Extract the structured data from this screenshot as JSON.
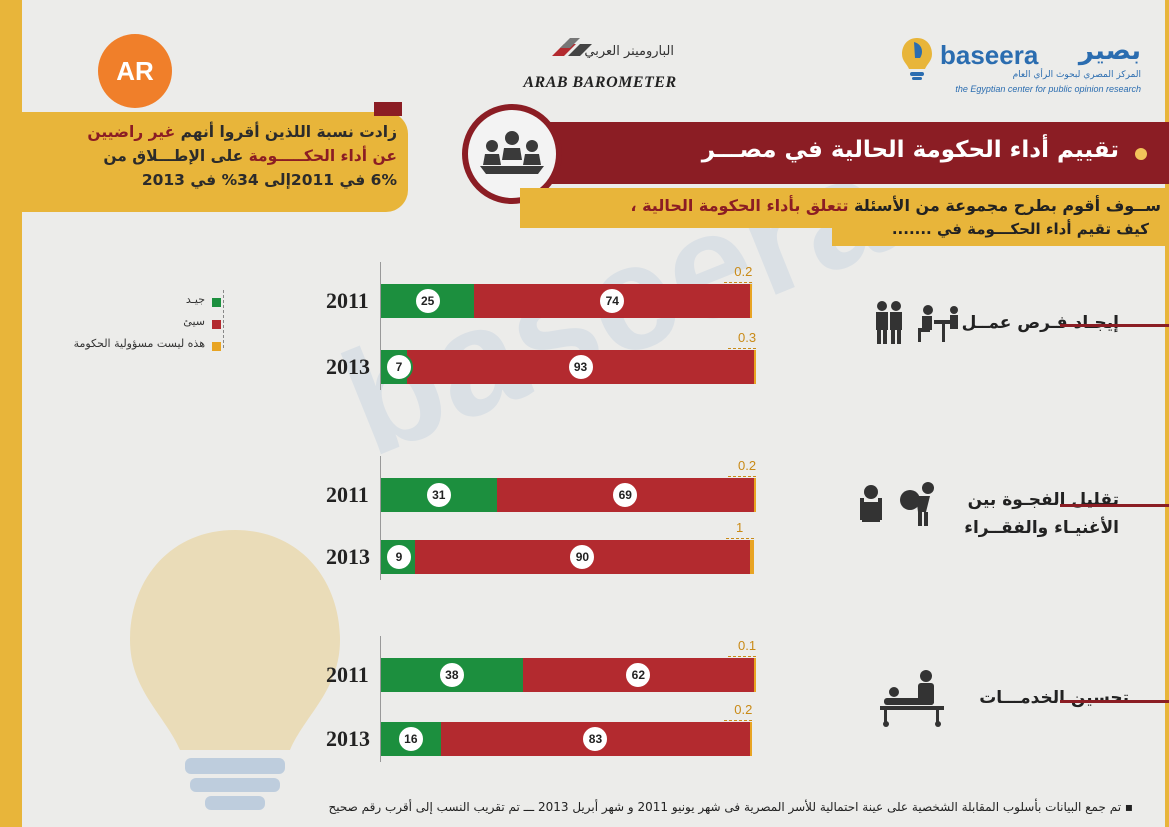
{
  "header": {
    "ar_logo_text": "AR",
    "arab_barometer_ar": "البارومينر العربي",
    "arab_barometer_en": "ARAB BAROMETER",
    "baseera_en": "baseera",
    "baseera_ar": "بصير",
    "baseera_sub_ar": "المركز المصري لبحوث الرأي العام",
    "baseera_sub_en": "the Egyptian center for public opinion research"
  },
  "title": "تقييم أداء الحكومة الحالية في مصـــر",
  "question": {
    "line1_a": "ســوف أقوم بطرح مجموعة من الأسئلة ",
    "line1_hl": "تتعلق بأداء الحكومة الحالية ،",
    "line2": "كيف تقيم أداء الحكـــومة في ......."
  },
  "callout": {
    "p1": "زادت نسبة اللذين أقروا أنهم ",
    "p1_red": "غير راضيين",
    "p2": " عن أداء الحكـــــومة",
    "p3": " على الإطـــلاق من",
    "p4": "6% في 2011إلى 34% في 2013"
  },
  "legend": [
    {
      "label": "جيـد",
      "color": "#1c8f3e"
    },
    {
      "label": "سيئ",
      "color": "#b32a2f"
    },
    {
      "label": "هذه ليست مسؤولية الحكومة",
      "color": "#e8a423"
    }
  ],
  "categories": [
    {
      "label1": "إيجـاد فـرص عمــل",
      "label2": "",
      "icon": "job-interview-icon"
    },
    {
      "label1": "تقليل الفجـوة بين",
      "label2": "الأغنيـاء والفقــراء",
      "icon": "rich-poor-gap-icon"
    },
    {
      "label1": "تحسين الخدمـــات",
      "label2": "",
      "icon": "medical-services-icon"
    }
  ],
  "chart_data": {
    "type": "bar",
    "orientation": "horizontal",
    "stacked": true,
    "title": "تقييم أداء الحكومة الحالية في مصـــر",
    "series_names": [
      "جيـد",
      "سيئ",
      "هذه ليست مسؤولية الحكومة"
    ],
    "colors": [
      "#1c8f3e",
      "#b32a2f",
      "#e8a423"
    ],
    "groups": [
      {
        "category": "إيجـاد فـرص عمــل",
        "bars": [
          {
            "year": "2011",
            "good": 25,
            "bad": 74,
            "na": 0.2
          },
          {
            "year": "2013",
            "good": 7,
            "bad": 93,
            "na": 0.3
          }
        ]
      },
      {
        "category": "تقليل الفجـوة بين الأغنيـاء والفقــراء",
        "bars": [
          {
            "year": "2011",
            "good": 31,
            "bad": 69,
            "na": 0.2
          },
          {
            "year": "2013",
            "good": 9,
            "bad": 90,
            "na": 1
          }
        ]
      },
      {
        "category": "تحسين الخدمـــات",
        "bars": [
          {
            "year": "2011",
            "good": 38,
            "bad": 62,
            "na": 0.1
          },
          {
            "year": "2013",
            "good": 16,
            "bad": 83,
            "na": 0.2
          }
        ]
      }
    ],
    "xlim": [
      0,
      100
    ]
  },
  "footnote": "▪ تم جمع البيانات بأسلوب المقابلة الشخصية على عينة احتمالية للأسر المصرية فى شهر يونيو 2011 و شهر أبريل 2013  ـــ  تم تقريب النسب إلى أقرب رقم صحيح"
}
